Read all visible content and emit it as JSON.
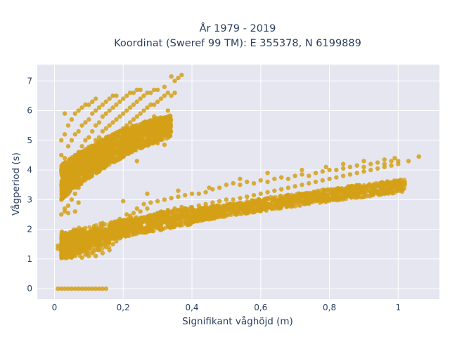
{
  "chart_data": {
    "type": "scatter",
    "title_line1": "År 1979 - 2019",
    "title_line2": "Koordinat (Sweref 99 TM): E 355378, N 6199889",
    "xlabel": "Signifikant våghöjd (m)",
    "ylabel": "Vågperiod (s)",
    "xlim": [
      -0.05,
      1.12
    ],
    "ylim": [
      -0.35,
      7.55
    ],
    "x_ticks": [
      0,
      0.2,
      0.4,
      0.6,
      0.8,
      1
    ],
    "x_tick_labels": [
      "0",
      "0,2",
      "0,4",
      "0,6",
      "0,8",
      "1"
    ],
    "y_ticks": [
      0,
      1,
      2,
      3,
      4,
      5,
      6,
      7
    ],
    "y_tick_labels": [
      "0",
      "1",
      "2",
      "3",
      "4",
      "5",
      "6",
      "7"
    ],
    "grid": true,
    "marker_color": "#d4a017",
    "background_color": "#e5e6f0",
    "points": [
      [
        0.01,
        0
      ],
      [
        0.02,
        0
      ],
      [
        0.03,
        0
      ],
      [
        0.04,
        0
      ],
      [
        0.05,
        0
      ],
      [
        0.06,
        0
      ],
      [
        0.07,
        0
      ],
      [
        0.08,
        0
      ],
      [
        0.09,
        0
      ],
      [
        0.1,
        0
      ],
      [
        0.11,
        0
      ],
      [
        0.12,
        0
      ],
      [
        0.13,
        0
      ],
      [
        0.14,
        0
      ],
      [
        0.15,
        0
      ],
      [
        0.01,
        1.45
      ],
      [
        0.01,
        1.35
      ],
      [
        0.02,
        1.5
      ],
      [
        0.02,
        1.3
      ],
      [
        0.03,
        1.2
      ],
      [
        0.03,
        1.55
      ],
      [
        0.04,
        1.1
      ],
      [
        0.04,
        1.4
      ],
      [
        0.05,
        1.05
      ],
      [
        0.05,
        1.5
      ],
      [
        0.06,
        1.1
      ],
      [
        0.06,
        1.6
      ],
      [
        0.07,
        1.2
      ],
      [
        0.07,
        1.45
      ],
      [
        0.08,
        1.05
      ],
      [
        0.08,
        1.7
      ],
      [
        0.09,
        1.15
      ],
      [
        0.09,
        1.55
      ],
      [
        0.1,
        1.1
      ],
      [
        0.1,
        1.8
      ],
      [
        0.11,
        1.2
      ],
      [
        0.11,
        1.6
      ],
      [
        0.12,
        1.1
      ],
      [
        0.12,
        1.9
      ],
      [
        0.13,
        1.3
      ],
      [
        0.13,
        1.75
      ],
      [
        0.14,
        1.2
      ],
      [
        0.14,
        2.0
      ],
      [
        0.15,
        1.4
      ],
      [
        0.15,
        1.85
      ],
      [
        0.16,
        1.3
      ],
      [
        0.16,
        2.1
      ],
      [
        0.17,
        1.5
      ],
      [
        0.17,
        1.9
      ],
      [
        0.18,
        1.6
      ],
      [
        0.18,
        2.2
      ],
      [
        0.19,
        1.7
      ],
      [
        0.19,
        2.35
      ],
      [
        0.2,
        1.8
      ],
      [
        0.2,
        2.3
      ],
      [
        0.21,
        1.9
      ],
      [
        0.21,
        2.5
      ],
      [
        0.22,
        2.0
      ],
      [
        0.22,
        2.45
      ],
      [
        0.23,
        2.1
      ],
      [
        0.23,
        2.55
      ],
      [
        0.24,
        2.2
      ],
      [
        0.24,
        2.7
      ],
      [
        0.25,
        2.3
      ],
      [
        0.25,
        2.6
      ],
      [
        0.26,
        2.3
      ],
      [
        0.26,
        2.85
      ],
      [
        0.27,
        2.4
      ],
      [
        0.27,
        2.7
      ],
      [
        0.28,
        2.45
      ],
      [
        0.28,
        2.9
      ],
      [
        0.29,
        2.5
      ],
      [
        0.3,
        2.55
      ],
      [
        0.3,
        2.95
      ],
      [
        0.31,
        2.6
      ],
      [
        0.32,
        2.55
      ],
      [
        0.32,
        3.0
      ],
      [
        0.33,
        2.65
      ],
      [
        0.34,
        2.6
      ],
      [
        0.34,
        3.05
      ],
      [
        0.35,
        2.7
      ],
      [
        0.36,
        2.65
      ],
      [
        0.36,
        3.1
      ],
      [
        0.37,
        2.75
      ],
      [
        0.38,
        2.7
      ],
      [
        0.38,
        3.15
      ],
      [
        0.4,
        2.75
      ],
      [
        0.4,
        3.2
      ],
      [
        0.42,
        2.8
      ],
      [
        0.42,
        3.2
      ],
      [
        0.44,
        2.85
      ],
      [
        0.44,
        3.25
      ],
      [
        0.46,
        2.9
      ],
      [
        0.46,
        3.35
      ],
      [
        0.48,
        2.95
      ],
      [
        0.48,
        3.4
      ],
      [
        0.5,
        3.0
      ],
      [
        0.5,
        3.5
      ],
      [
        0.52,
        3.0
      ],
      [
        0.52,
        3.55
      ],
      [
        0.54,
        3.05
      ],
      [
        0.54,
        3.5
      ],
      [
        0.56,
        3.1
      ],
      [
        0.56,
        3.6
      ],
      [
        0.58,
        3.15
      ],
      [
        0.58,
        3.55
      ],
      [
        0.6,
        3.2
      ],
      [
        0.6,
        3.65
      ],
      [
        0.62,
        3.25
      ],
      [
        0.62,
        3.6
      ],
      [
        0.64,
        3.3
      ],
      [
        0.64,
        3.7
      ],
      [
        0.66,
        3.35
      ],
      [
        0.66,
        3.75
      ],
      [
        0.68,
        3.4
      ],
      [
        0.68,
        3.7
      ],
      [
        0.7,
        3.45
      ],
      [
        0.7,
        3.8
      ],
      [
        0.72,
        3.5
      ],
      [
        0.72,
        3.85
      ],
      [
        0.74,
        3.55
      ],
      [
        0.74,
        3.8
      ],
      [
        0.76,
        3.6
      ],
      [
        0.76,
        3.9
      ],
      [
        0.78,
        3.65
      ],
      [
        0.78,
        3.95
      ],
      [
        0.8,
        3.7
      ],
      [
        0.8,
        4.0
      ],
      [
        0.82,
        3.75
      ],
      [
        0.82,
        4.0
      ],
      [
        0.84,
        3.8
      ],
      [
        0.84,
        4.05
      ],
      [
        0.86,
        3.85
      ],
      [
        0.86,
        4.1
      ],
      [
        0.88,
        3.9
      ],
      [
        0.88,
        4.15
      ],
      [
        0.9,
        3.95
      ],
      [
        0.9,
        4.1
      ],
      [
        0.92,
        4.0
      ],
      [
        0.92,
        4.2
      ],
      [
        0.94,
        4.05
      ],
      [
        0.94,
        4.25
      ],
      [
        0.96,
        4.1
      ],
      [
        0.96,
        4.2
      ],
      [
        0.98,
        4.15
      ],
      [
        0.98,
        4.3
      ],
      [
        1.0,
        4.2
      ],
      [
        1.0,
        4.3
      ],
      [
        1.03,
        4.3
      ],
      [
        1.06,
        4.45
      ],
      [
        0.27,
        3.2
      ],
      [
        0.36,
        3.3
      ],
      [
        0.45,
        3.4
      ],
      [
        0.54,
        3.7
      ],
      [
        0.62,
        3.9
      ],
      [
        0.72,
        4.0
      ],
      [
        0.79,
        4.1
      ],
      [
        0.84,
        4.2
      ],
      [
        0.9,
        4.3
      ],
      [
        0.96,
        4.35
      ],
      [
        0.99,
        4.4
      ],
      [
        0.2,
        2.95
      ],
      [
        0.02,
        2.5
      ],
      [
        0.02,
        3.0
      ],
      [
        0.02,
        3.5
      ],
      [
        0.02,
        4.0
      ],
      [
        0.02,
        4.5
      ],
      [
        0.02,
        5.0
      ],
      [
        0.03,
        2.6
      ],
      [
        0.03,
        3.2
      ],
      [
        0.03,
        3.8
      ],
      [
        0.03,
        4.4
      ],
      [
        0.03,
        5.2
      ],
      [
        0.03,
        5.9
      ],
      [
        0.04,
        2.8
      ],
      [
        0.04,
        3.4
      ],
      [
        0.04,
        4.1
      ],
      [
        0.04,
        4.8
      ],
      [
        0.04,
        5.5
      ],
      [
        0.05,
        3.0
      ],
      [
        0.05,
        3.6
      ],
      [
        0.05,
        4.3
      ],
      [
        0.05,
        5.0
      ],
      [
        0.05,
        5.7
      ],
      [
        0.06,
        3.2
      ],
      [
        0.06,
        3.8
      ],
      [
        0.06,
        4.5
      ],
      [
        0.06,
        5.2
      ],
      [
        0.06,
        5.9
      ],
      [
        0.07,
        3.4
      ],
      [
        0.07,
        4.0
      ],
      [
        0.07,
        4.6
      ],
      [
        0.07,
        5.3
      ],
      [
        0.07,
        6.0
      ],
      [
        0.08,
        3.6
      ],
      [
        0.08,
        4.2
      ],
      [
        0.08,
        4.8
      ],
      [
        0.08,
        5.5
      ],
      [
        0.08,
        6.1
      ],
      [
        0.09,
        3.8
      ],
      [
        0.09,
        4.4
      ],
      [
        0.09,
        5.0
      ],
      [
        0.09,
        5.6
      ],
      [
        0.09,
        6.2
      ],
      [
        0.1,
        4.0
      ],
      [
        0.1,
        4.6
      ],
      [
        0.1,
        5.1
      ],
      [
        0.1,
        5.7
      ],
      [
        0.1,
        6.2
      ],
      [
        0.11,
        4.2
      ],
      [
        0.11,
        4.8
      ],
      [
        0.11,
        5.3
      ],
      [
        0.11,
        5.9
      ],
      [
        0.11,
        6.3
      ],
      [
        0.12,
        4.4
      ],
      [
        0.12,
        5.0
      ],
      [
        0.12,
        5.5
      ],
      [
        0.12,
        6.0
      ],
      [
        0.12,
        6.4
      ],
      [
        0.13,
        4.6
      ],
      [
        0.13,
        5.1
      ],
      [
        0.13,
        5.6
      ],
      [
        0.13,
        6.1
      ],
      [
        0.14,
        4.8
      ],
      [
        0.14,
        5.3
      ],
      [
        0.14,
        5.8
      ],
      [
        0.14,
        6.2
      ],
      [
        0.15,
        4.9
      ],
      [
        0.15,
        5.4
      ],
      [
        0.15,
        5.9
      ],
      [
        0.15,
        6.3
      ],
      [
        0.16,
        5.0
      ],
      [
        0.16,
        5.5
      ],
      [
        0.16,
        6.0
      ],
      [
        0.16,
        6.4
      ],
      [
        0.17,
        5.1
      ],
      [
        0.17,
        5.6
      ],
      [
        0.17,
        6.1
      ],
      [
        0.17,
        6.5
      ],
      [
        0.18,
        5.2
      ],
      [
        0.18,
        5.7
      ],
      [
        0.18,
        6.2
      ],
      [
        0.18,
        6.5
      ],
      [
        0.19,
        5.3
      ],
      [
        0.19,
        5.8
      ],
      [
        0.19,
        6.3
      ],
      [
        0.2,
        5.4
      ],
      [
        0.2,
        5.9
      ],
      [
        0.2,
        6.4
      ],
      [
        0.21,
        5.5
      ],
      [
        0.21,
        6.0
      ],
      [
        0.21,
        6.5
      ],
      [
        0.22,
        5.6
      ],
      [
        0.22,
        6.1
      ],
      [
        0.22,
        6.6
      ],
      [
        0.23,
        5.7
      ],
      [
        0.23,
        6.2
      ],
      [
        0.23,
        6.6
      ],
      [
        0.24,
        5.8
      ],
      [
        0.24,
        6.3
      ],
      [
        0.24,
        6.7
      ],
      [
        0.25,
        5.9
      ],
      [
        0.25,
        6.4
      ],
      [
        0.25,
        6.7
      ],
      [
        0.26,
        6.0
      ],
      [
        0.26,
        6.5
      ],
      [
        0.27,
        6.1
      ],
      [
        0.27,
        6.6
      ],
      [
        0.28,
        6.2
      ],
      [
        0.28,
        6.6
      ],
      [
        0.29,
        6.2
      ],
      [
        0.29,
        6.7
      ],
      [
        0.3,
        6.3
      ],
      [
        0.3,
        6.7
      ],
      [
        0.31,
        6.4
      ],
      [
        0.32,
        6.5
      ],
      [
        0.32,
        6.8
      ],
      [
        0.33,
        6.6
      ],
      [
        0.34,
        6.5
      ],
      [
        0.35,
        6.6
      ],
      [
        0.35,
        7.0
      ],
      [
        0.36,
        7.1
      ],
      [
        0.37,
        7.2
      ],
      [
        0.34,
        7.15
      ],
      [
        0.33,
        6.0
      ],
      [
        0.29,
        5.8
      ],
      [
        0.27,
        5.6
      ],
      [
        0.25,
        5.2
      ],
      [
        0.24,
        5.0
      ],
      [
        0.23,
        4.7
      ],
      [
        0.22,
        4.6
      ],
      [
        0.2,
        4.5
      ],
      [
        0.21,
        4.55
      ],
      [
        0.19,
        4.6
      ],
      [
        0.24,
        4.3
      ],
      [
        0.32,
        4.85
      ],
      [
        0.3,
        4.9
      ],
      [
        0.14,
        4.3
      ],
      [
        0.07,
        2.9
      ],
      [
        0.06,
        2.6
      ],
      [
        0.04,
        2.55
      ],
      [
        0.03,
        2.7
      ],
      [
        0.11,
        4.6
      ],
      [
        0.1,
        4.5
      ],
      [
        0.08,
        4.0
      ],
      [
        0.09,
        4.1
      ],
      [
        0.12,
        4.2
      ],
      [
        0.13,
        4.4
      ]
    ]
  }
}
